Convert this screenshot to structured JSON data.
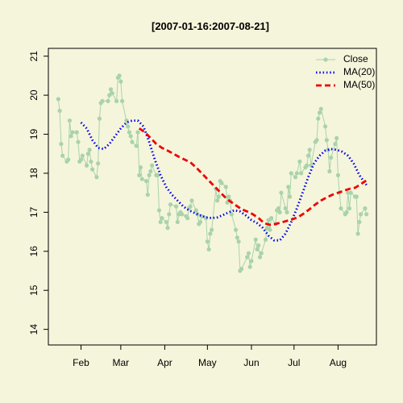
{
  "chart_data": {
    "type": "line",
    "title": "[2007-01-16:2007-08-21]",
    "xlabel": "",
    "ylabel": "",
    "xlim": [
      "2007-01-09",
      "2007-08-28"
    ],
    "ylim": [
      13.6,
      21.2
    ],
    "x_ticks": [
      {
        "label": "Feb",
        "date": "2007-02-01"
      },
      {
        "label": "Mar",
        "date": "2007-03-01"
      },
      {
        "label": "Apr",
        "date": "2007-04-01"
      },
      {
        "label": "May",
        "date": "2007-05-01"
      },
      {
        "label": "Jun",
        "date": "2007-06-01"
      },
      {
        "label": "Jul",
        "date": "2007-07-01"
      },
      {
        "label": "Aug",
        "date": "2007-08-01"
      }
    ],
    "y_ticks": [
      14,
      15,
      16,
      17,
      18,
      19,
      20,
      21
    ],
    "grid": false,
    "legend_position": "top-right",
    "colors": {
      "background": "#f5f5dc",
      "close": "#a9d3a9",
      "ma20": "#0000ee",
      "ma50": "#ee0000"
    },
    "series": [
      {
        "name": "Close",
        "style": "line-points",
        "points": [
          [
            "2007-01-16",
            19.9
          ],
          [
            "2007-01-17",
            19.6
          ],
          [
            "2007-01-18",
            18.75
          ],
          [
            "2007-01-19",
            18.45
          ],
          [
            "2007-01-22",
            18.3
          ],
          [
            "2007-01-23",
            18.35
          ],
          [
            "2007-01-24",
            19.35
          ],
          [
            "2007-01-25",
            18.95
          ],
          [
            "2007-01-26",
            19.05
          ],
          [
            "2007-01-29",
            19.05
          ],
          [
            "2007-01-30",
            18.8
          ],
          [
            "2007-01-31",
            18.3
          ],
          [
            "2007-02-01",
            18.35
          ],
          [
            "2007-02-02",
            18.45
          ],
          [
            "2007-02-05",
            18.2
          ],
          [
            "2007-02-06",
            18.5
          ],
          [
            "2007-02-07",
            18.6
          ],
          [
            "2007-02-08",
            18.3
          ],
          [
            "2007-02-09",
            18.1
          ],
          [
            "2007-02-12",
            17.9
          ],
          [
            "2007-02-13",
            18.25
          ],
          [
            "2007-02-14",
            19.4
          ],
          [
            "2007-02-15",
            19.8
          ],
          [
            "2007-02-16",
            19.85
          ],
          [
            "2007-02-20",
            19.85
          ],
          [
            "2007-02-21",
            20.0
          ],
          [
            "2007-02-22",
            20.15
          ],
          [
            "2007-02-23",
            20.05
          ],
          [
            "2007-02-26",
            19.85
          ],
          [
            "2007-02-27",
            20.45
          ],
          [
            "2007-02-28",
            20.5
          ],
          [
            "2007-03-01",
            20.35
          ],
          [
            "2007-03-02",
            19.85
          ],
          [
            "2007-03-05",
            19.35
          ],
          [
            "2007-03-06",
            19.2
          ],
          [
            "2007-03-07",
            19.05
          ],
          [
            "2007-03-08",
            18.95
          ],
          [
            "2007-03-09",
            18.8
          ],
          [
            "2007-03-12",
            18.7
          ],
          [
            "2007-03-13",
            19.05
          ],
          [
            "2007-03-14",
            17.95
          ],
          [
            "2007-03-15",
            18.15
          ],
          [
            "2007-03-16",
            17.85
          ],
          [
            "2007-03-19",
            17.8
          ],
          [
            "2007-03-20",
            17.45
          ],
          [
            "2007-03-21",
            17.95
          ],
          [
            "2007-03-22",
            18.05
          ],
          [
            "2007-03-23",
            18.2
          ],
          [
            "2007-03-26",
            17.95
          ],
          [
            "2007-03-27",
            17.95
          ],
          [
            "2007-03-28",
            17.05
          ],
          [
            "2007-03-29",
            16.75
          ],
          [
            "2007-03-30",
            16.85
          ],
          [
            "2007-04-02",
            16.75
          ],
          [
            "2007-04-03",
            16.6
          ],
          [
            "2007-04-04",
            16.95
          ],
          [
            "2007-04-05",
            17.2
          ],
          [
            "2007-04-09",
            17.15
          ],
          [
            "2007-04-10",
            16.75
          ],
          [
            "2007-04-11",
            16.95
          ],
          [
            "2007-04-12",
            17.0
          ],
          [
            "2007-04-13",
            16.95
          ],
          [
            "2007-04-16",
            16.9
          ],
          [
            "2007-04-17",
            16.85
          ],
          [
            "2007-04-18",
            17.1
          ],
          [
            "2007-04-19",
            17.15
          ],
          [
            "2007-04-20",
            17.3
          ],
          [
            "2007-04-23",
            17.05
          ],
          [
            "2007-04-24",
            16.95
          ],
          [
            "2007-04-25",
            16.7
          ],
          [
            "2007-04-26",
            16.75
          ],
          [
            "2007-04-27",
            16.9
          ],
          [
            "2007-04-30",
            16.85
          ],
          [
            "2007-05-01",
            16.25
          ],
          [
            "2007-05-02",
            16.05
          ],
          [
            "2007-05-03",
            16.45
          ],
          [
            "2007-05-04",
            16.55
          ],
          [
            "2007-05-07",
            17.6
          ],
          [
            "2007-05-08",
            17.3
          ],
          [
            "2007-05-09",
            17.4
          ],
          [
            "2007-05-10",
            17.8
          ],
          [
            "2007-05-11",
            17.75
          ],
          [
            "2007-05-14",
            17.65
          ],
          [
            "2007-05-15",
            17.25
          ],
          [
            "2007-05-16",
            17.4
          ],
          [
            "2007-05-17",
            17.3
          ],
          [
            "2007-05-18",
            16.95
          ],
          [
            "2007-05-21",
            16.55
          ],
          [
            "2007-05-22",
            16.35
          ],
          [
            "2007-05-23",
            16.25
          ],
          [
            "2007-05-24",
            15.5
          ],
          [
            "2007-05-25",
            15.55
          ],
          [
            "2007-05-29",
            15.85
          ],
          [
            "2007-05-30",
            15.95
          ],
          [
            "2007-05-31",
            15.6
          ],
          [
            "2007-06-01",
            15.75
          ],
          [
            "2007-06-04",
            16.3
          ],
          [
            "2007-06-05",
            16.05
          ],
          [
            "2007-06-06",
            16.15
          ],
          [
            "2007-06-07",
            15.85
          ],
          [
            "2007-06-08",
            15.95
          ],
          [
            "2007-06-11",
            16.3
          ],
          [
            "2007-06-12",
            16.6
          ],
          [
            "2007-06-13",
            16.8
          ],
          [
            "2007-06-14",
            16.55
          ],
          [
            "2007-06-15",
            16.85
          ],
          [
            "2007-06-18",
            16.7
          ],
          [
            "2007-06-19",
            17.05
          ],
          [
            "2007-06-20",
            17.1
          ],
          [
            "2007-06-21",
            17.0
          ],
          [
            "2007-06-22",
            17.5
          ],
          [
            "2007-06-25",
            17.1
          ],
          [
            "2007-06-26",
            17.0
          ],
          [
            "2007-06-27",
            17.65
          ],
          [
            "2007-06-28",
            17.4
          ],
          [
            "2007-06-29",
            18.0
          ],
          [
            "2007-07-02",
            17.9
          ],
          [
            "2007-07-03",
            18.0
          ],
          [
            "2007-07-05",
            18.3
          ],
          [
            "2007-07-06",
            18.0
          ],
          [
            "2007-07-09",
            18.15
          ],
          [
            "2007-07-10",
            18.2
          ],
          [
            "2007-07-11",
            18.45
          ],
          [
            "2007-07-12",
            18.6
          ],
          [
            "2007-07-13",
            18.2
          ],
          [
            "2007-07-16",
            18.8
          ],
          [
            "2007-07-17",
            18.85
          ],
          [
            "2007-07-18",
            19.4
          ],
          [
            "2007-07-19",
            19.55
          ],
          [
            "2007-07-20",
            19.65
          ],
          [
            "2007-07-23",
            19.2
          ],
          [
            "2007-07-24",
            18.85
          ],
          [
            "2007-07-25",
            18.6
          ],
          [
            "2007-07-26",
            18.05
          ],
          [
            "2007-07-27",
            18.4
          ],
          [
            "2007-07-30",
            18.75
          ],
          [
            "2007-07-31",
            18.9
          ],
          [
            "2007-08-01",
            17.95
          ],
          [
            "2007-08-02",
            17.5
          ],
          [
            "2007-08-03",
            17.1
          ],
          [
            "2007-08-06",
            16.95
          ],
          [
            "2007-08-07",
            17.0
          ],
          [
            "2007-08-08",
            17.5
          ],
          [
            "2007-08-09",
            17.1
          ],
          [
            "2007-08-10",
            17.5
          ],
          [
            "2007-08-13",
            17.4
          ],
          [
            "2007-08-14",
            17.4
          ],
          [
            "2007-08-15",
            16.45
          ],
          [
            "2007-08-16",
            16.75
          ],
          [
            "2007-08-17",
            16.95
          ],
          [
            "2007-08-20",
            17.1
          ],
          [
            "2007-08-21",
            16.95
          ]
        ]
      },
      {
        "name": "MA(20)",
        "style": "dotted",
        "points": [
          [
            "2007-02-01",
            19.3
          ],
          [
            "2007-02-05",
            19.15
          ],
          [
            "2007-02-09",
            18.85
          ],
          [
            "2007-02-13",
            18.65
          ],
          [
            "2007-02-17",
            18.62
          ],
          [
            "2007-02-21",
            18.75
          ],
          [
            "2007-02-25",
            18.95
          ],
          [
            "2007-03-01",
            19.15
          ],
          [
            "2007-03-05",
            19.3
          ],
          [
            "2007-03-09",
            19.35
          ],
          [
            "2007-03-13",
            19.35
          ],
          [
            "2007-03-17",
            19.2
          ],
          [
            "2007-03-21",
            18.8
          ],
          [
            "2007-03-25",
            18.35
          ],
          [
            "2007-03-29",
            17.95
          ],
          [
            "2007-04-02",
            17.65
          ],
          [
            "2007-04-06",
            17.45
          ],
          [
            "2007-04-10",
            17.3
          ],
          [
            "2007-04-14",
            17.15
          ],
          [
            "2007-04-18",
            17.05
          ],
          [
            "2007-04-22",
            16.98
          ],
          [
            "2007-04-26",
            16.92
          ],
          [
            "2007-04-30",
            16.87
          ],
          [
            "2007-05-04",
            16.85
          ],
          [
            "2007-05-08",
            16.87
          ],
          [
            "2007-05-12",
            16.93
          ],
          [
            "2007-05-16",
            17.0
          ],
          [
            "2007-05-20",
            17.05
          ],
          [
            "2007-05-24",
            17.02
          ],
          [
            "2007-05-28",
            16.92
          ],
          [
            "2007-06-01",
            16.8
          ],
          [
            "2007-06-05",
            16.72
          ],
          [
            "2007-06-09",
            16.6
          ],
          [
            "2007-06-13",
            16.4
          ],
          [
            "2007-06-17",
            16.28
          ],
          [
            "2007-06-21",
            16.28
          ],
          [
            "2007-06-25",
            16.45
          ],
          [
            "2007-06-29",
            16.75
          ],
          [
            "2007-07-03",
            17.1
          ],
          [
            "2007-07-07",
            17.5
          ],
          [
            "2007-07-11",
            17.9
          ],
          [
            "2007-07-15",
            18.25
          ],
          [
            "2007-07-19",
            18.45
          ],
          [
            "2007-07-23",
            18.58
          ],
          [
            "2007-07-27",
            18.62
          ],
          [
            "2007-07-31",
            18.6
          ],
          [
            "2007-08-04",
            18.55
          ],
          [
            "2007-08-08",
            18.45
          ],
          [
            "2007-08-12",
            18.25
          ],
          [
            "2007-08-16",
            17.95
          ],
          [
            "2007-08-21",
            17.7
          ]
        ]
      },
      {
        "name": "MA(50)",
        "style": "dashed",
        "points": [
          [
            "2007-03-14",
            19.15
          ],
          [
            "2007-03-18",
            19.05
          ],
          [
            "2007-03-22",
            18.9
          ],
          [
            "2007-03-26",
            18.75
          ],
          [
            "2007-03-30",
            18.65
          ],
          [
            "2007-04-03",
            18.58
          ],
          [
            "2007-04-07",
            18.5
          ],
          [
            "2007-04-11",
            18.42
          ],
          [
            "2007-04-15",
            18.35
          ],
          [
            "2007-04-19",
            18.28
          ],
          [
            "2007-04-23",
            18.15
          ],
          [
            "2007-04-27",
            18.0
          ],
          [
            "2007-05-01",
            17.85
          ],
          [
            "2007-05-05",
            17.7
          ],
          [
            "2007-05-09",
            17.55
          ],
          [
            "2007-05-13",
            17.4
          ],
          [
            "2007-05-17",
            17.28
          ],
          [
            "2007-05-21",
            17.18
          ],
          [
            "2007-05-25",
            17.08
          ],
          [
            "2007-05-29",
            17.02
          ],
          [
            "2007-06-02",
            16.95
          ],
          [
            "2007-06-06",
            16.85
          ],
          [
            "2007-06-10",
            16.72
          ],
          [
            "2007-06-14",
            16.68
          ],
          [
            "2007-06-18",
            16.7
          ],
          [
            "2007-06-22",
            16.74
          ],
          [
            "2007-06-26",
            16.78
          ],
          [
            "2007-06-30",
            16.82
          ],
          [
            "2007-07-04",
            16.88
          ],
          [
            "2007-07-08",
            16.97
          ],
          [
            "2007-07-12",
            17.08
          ],
          [
            "2007-07-16",
            17.2
          ],
          [
            "2007-07-20",
            17.3
          ],
          [
            "2007-07-24",
            17.38
          ],
          [
            "2007-07-28",
            17.45
          ],
          [
            "2007-08-01",
            17.5
          ],
          [
            "2007-08-05",
            17.55
          ],
          [
            "2007-08-09",
            17.6
          ],
          [
            "2007-08-13",
            17.63
          ],
          [
            "2007-08-17",
            17.72
          ],
          [
            "2007-08-21",
            17.82
          ]
        ]
      }
    ]
  }
}
